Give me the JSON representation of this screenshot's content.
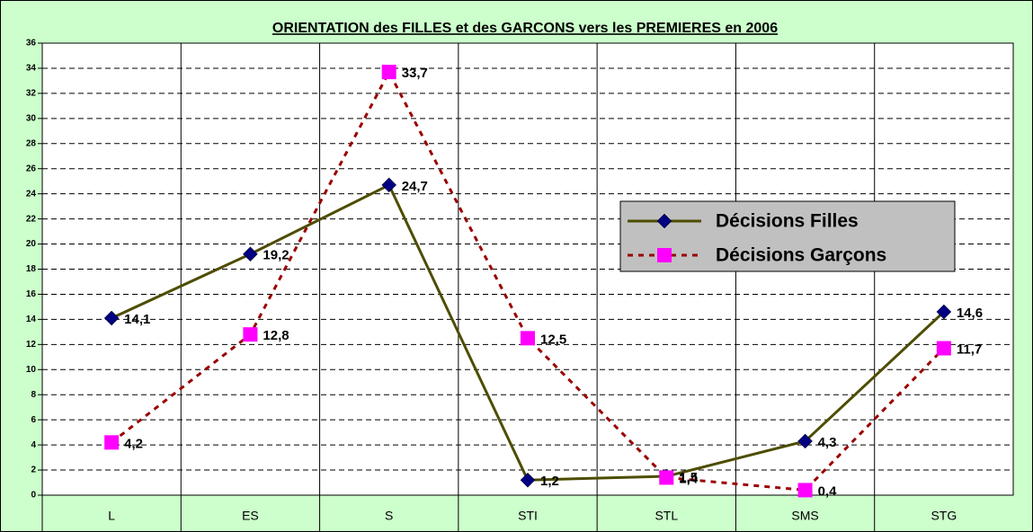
{
  "chart_data": {
    "type": "line",
    "title": "ORIENTATION des FILLES et des GARCONS vers les PREMIERES en 2006",
    "categories": [
      "L",
      "ES",
      "S",
      "STI",
      "STL",
      "SMS",
      "STG"
    ],
    "series": [
      {
        "name": "Décisions Filles",
        "color": "#4d4d00",
        "marker_color": "#000080",
        "marker": "diamond",
        "dash": "solid",
        "values": [
          14.1,
          19.2,
          24.7,
          1.2,
          1.5,
          4.3,
          14.6
        ],
        "value_labels": [
          "14,1",
          "19,2",
          "24,7",
          "1,2",
          "1,5",
          "4,3",
          "14,6"
        ]
      },
      {
        "name": "Décisions Garçons",
        "color": "#990000",
        "marker_color": "#ff00ff",
        "marker": "square",
        "dash": "dotted",
        "values": [
          4.2,
          12.8,
          33.7,
          12.5,
          1.4,
          0.4,
          11.7
        ],
        "value_labels": [
          "4,2",
          "12,8",
          "33,7",
          "12,5",
          "1,4",
          "0,4",
          "11,7"
        ]
      }
    ],
    "ylim": [
      0,
      36
    ],
    "yticks": [
      0,
      2,
      4,
      6,
      8,
      10,
      12,
      14,
      16,
      18,
      20,
      22,
      24,
      26,
      28,
      30,
      32,
      34,
      36
    ],
    "grid": true,
    "legend": "right"
  }
}
